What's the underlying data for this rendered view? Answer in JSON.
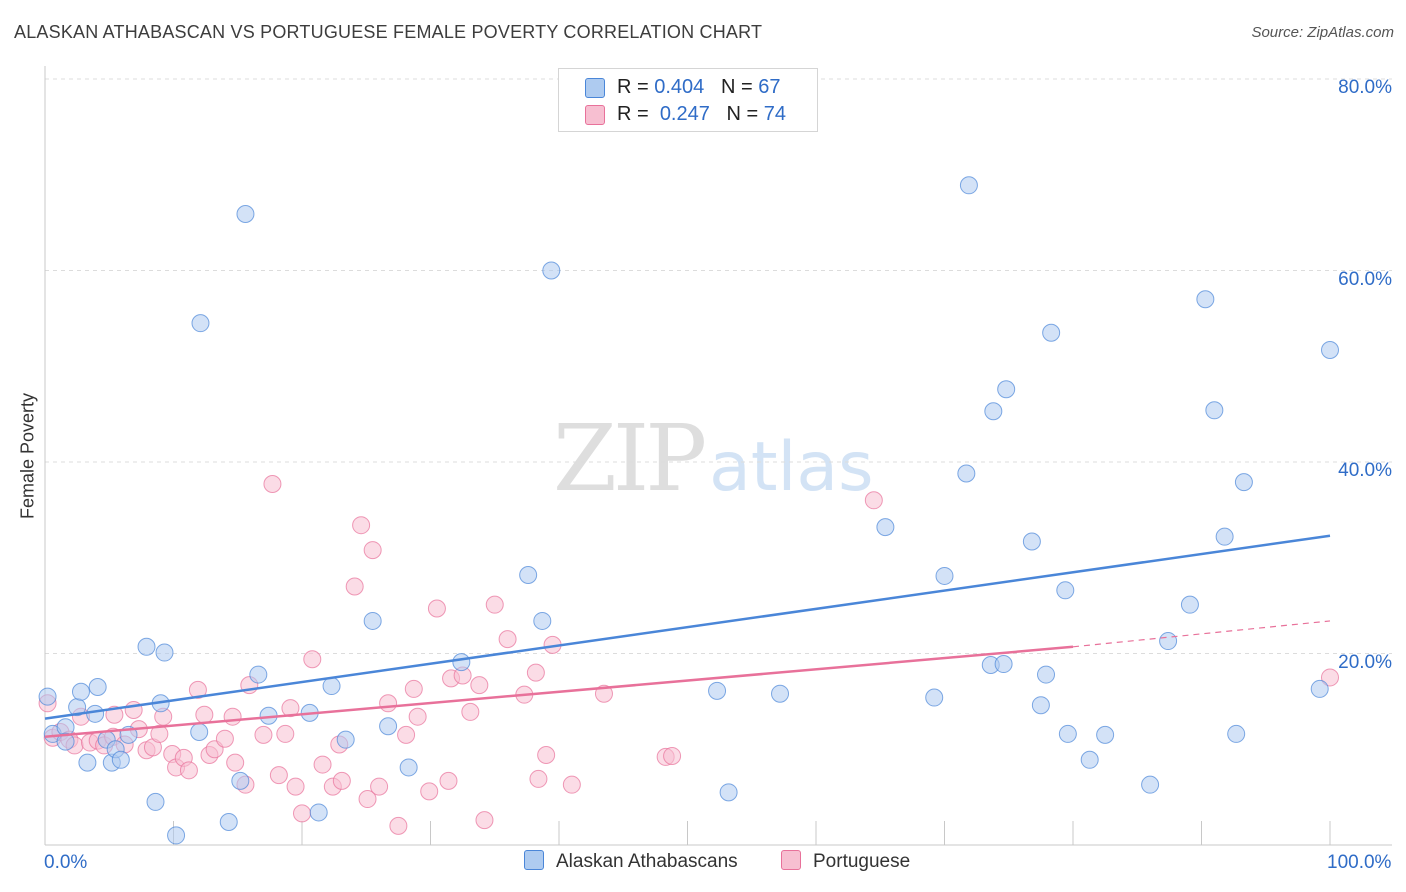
{
  "header": {
    "title": "ALASKAN ATHABASCAN VS PORTUGUESE FEMALE POVERTY CORRELATION CHART",
    "source": "Source: ZipAtlas.com"
  },
  "watermark": {
    "zip": "ZIP",
    "atlas": "atlas"
  },
  "stats_legend": {
    "rows": [
      {
        "r_label": "R = ",
        "r_value": "0.404",
        "n_label": "N = ",
        "n_value": "67",
        "color": "#aecbf0"
      },
      {
        "r_label": "R = ",
        "r_value": "0.247",
        "n_label": "N = ",
        "n_value": "74",
        "color": "#f7bfd1"
      }
    ]
  },
  "bottom_legend": {
    "items": [
      {
        "label": "Alaskan Athabascans",
        "color": "#aecbf0"
      },
      {
        "label": "Portuguese",
        "color": "#f7bfd1"
      }
    ]
  },
  "chart_data": {
    "type": "scatter",
    "title": "ALASKAN ATHABASCAN VS PORTUGUESE FEMALE POVERTY CORRELATION CHART",
    "xlabel": "",
    "ylabel": "Female Poverty",
    "xlim": [
      0,
      100
    ],
    "ylim": [
      0,
      80
    ],
    "x_tick_labels": [
      "0.0%",
      "100.0%"
    ],
    "y_ticks": [
      20,
      40,
      60,
      80
    ],
    "y_tick_labels": [
      "20.0%",
      "40.0%",
      "60.0%",
      "80.0%"
    ],
    "grid": true,
    "legend_position": "bottom",
    "colors": {
      "blue": "#4a86d8",
      "pink": "#e8719a",
      "blue_fill": "#aecbf0",
      "pink_fill": "#f7bfd1"
    },
    "series": [
      {
        "name": "Alaskan Athabascans",
        "color": "#4a86d8",
        "trend": {
          "x": [
            0,
            100
          ],
          "y": [
            13.2,
            32.3
          ]
        },
        "points": [
          [
            0.2,
            15.5
          ],
          [
            0.6,
            11.6
          ],
          [
            1.6,
            12.3
          ],
          [
            1.6,
            10.8
          ],
          [
            2.5,
            14.4
          ],
          [
            2.8,
            16.0
          ],
          [
            3.3,
            8.6
          ],
          [
            3.9,
            13.7
          ],
          [
            4.1,
            16.5
          ],
          [
            4.8,
            11.0
          ],
          [
            5.2,
            8.6
          ],
          [
            5.5,
            10.0
          ],
          [
            5.9,
            8.9
          ],
          [
            6.5,
            11.5
          ],
          [
            7.9,
            20.7
          ],
          [
            8.6,
            4.5
          ],
          [
            9.0,
            14.8
          ],
          [
            9.3,
            20.1
          ],
          [
            10.2,
            1.0
          ],
          [
            12.0,
            11.8
          ],
          [
            12.1,
            54.5
          ],
          [
            14.3,
            2.4
          ],
          [
            15.2,
            6.7
          ],
          [
            15.6,
            65.9
          ],
          [
            16.6,
            17.8
          ],
          [
            17.4,
            13.5
          ],
          [
            20.6,
            13.8
          ],
          [
            21.3,
            3.4
          ],
          [
            22.3,
            16.6
          ],
          [
            23.4,
            11.0
          ],
          [
            25.5,
            23.4
          ],
          [
            26.7,
            12.4
          ],
          [
            28.3,
            8.1
          ],
          [
            32.4,
            19.1
          ],
          [
            37.6,
            28.2
          ],
          [
            38.7,
            23.4
          ],
          [
            39.4,
            60.0
          ],
          [
            52.3,
            16.1
          ],
          [
            53.2,
            5.5
          ],
          [
            57.2,
            15.8
          ],
          [
            65.4,
            33.2
          ],
          [
            69.2,
            15.4
          ],
          [
            70.0,
            28.1
          ],
          [
            71.7,
            38.8
          ],
          [
            71.9,
            68.9
          ],
          [
            73.6,
            18.8
          ],
          [
            73.8,
            45.3
          ],
          [
            74.6,
            18.9
          ],
          [
            74.8,
            47.6
          ],
          [
            76.8,
            31.7
          ],
          [
            77.5,
            14.6
          ],
          [
            77.9,
            17.8
          ],
          [
            78.3,
            53.5
          ],
          [
            79.4,
            26.6
          ],
          [
            79.6,
            11.6
          ],
          [
            81.3,
            8.9
          ],
          [
            82.5,
            11.5
          ],
          [
            86.0,
            6.3
          ],
          [
            87.4,
            21.3
          ],
          [
            89.1,
            25.1
          ],
          [
            90.3,
            57.0
          ],
          [
            91.0,
            45.4
          ],
          [
            91.8,
            32.2
          ],
          [
            92.7,
            11.6
          ],
          [
            93.3,
            37.9
          ],
          [
            99.2,
            16.3
          ],
          [
            100.0,
            51.7
          ]
        ]
      },
      {
        "name": "Portuguese",
        "color": "#e8719a",
        "trend": {
          "x": [
            0,
            80
          ],
          "y": [
            11.3,
            20.7
          ],
          "dashed_x": [
            80,
            100
          ],
          "dashed_y": [
            20.7,
            23.4
          ]
        },
        "points": [
          [
            0.2,
            14.8
          ],
          [
            0.6,
            11.2
          ],
          [
            1.2,
            11.8
          ],
          [
            1.9,
            11.0
          ],
          [
            2.3,
            10.4
          ],
          [
            2.8,
            13.4
          ],
          [
            3.5,
            10.7
          ],
          [
            4.1,
            10.9
          ],
          [
            4.6,
            10.4
          ],
          [
            5.3,
            11.3
          ],
          [
            5.4,
            13.6
          ],
          [
            6.2,
            10.5
          ],
          [
            6.9,
            14.1
          ],
          [
            7.3,
            12.1
          ],
          [
            7.9,
            9.9
          ],
          [
            8.4,
            10.2
          ],
          [
            8.9,
            11.6
          ],
          [
            9.2,
            13.4
          ],
          [
            9.9,
            9.5
          ],
          [
            10.2,
            8.1
          ],
          [
            10.8,
            9.1
          ],
          [
            11.2,
            7.8
          ],
          [
            11.9,
            16.2
          ],
          [
            12.4,
            13.6
          ],
          [
            12.8,
            9.4
          ],
          [
            13.2,
            10.0
          ],
          [
            14.0,
            11.1
          ],
          [
            14.6,
            13.4
          ],
          [
            14.8,
            8.6
          ],
          [
            15.6,
            6.3
          ],
          [
            15.9,
            16.7
          ],
          [
            17.0,
            11.5
          ],
          [
            17.7,
            37.7
          ],
          [
            18.2,
            7.3
          ],
          [
            18.7,
            11.6
          ],
          [
            19.1,
            14.3
          ],
          [
            19.5,
            6.1
          ],
          [
            20.0,
            3.3
          ],
          [
            20.8,
            19.4
          ],
          [
            21.6,
            8.4
          ],
          [
            22.4,
            6.1
          ],
          [
            22.9,
            10.5
          ],
          [
            23.1,
            6.7
          ],
          [
            24.1,
            27.0
          ],
          [
            24.6,
            33.4
          ],
          [
            25.1,
            4.8
          ],
          [
            25.5,
            30.8
          ],
          [
            26.0,
            6.1
          ],
          [
            26.7,
            14.8
          ],
          [
            27.5,
            2.0
          ],
          [
            28.1,
            11.5
          ],
          [
            28.7,
            16.3
          ],
          [
            29.0,
            13.4
          ],
          [
            29.9,
            5.6
          ],
          [
            30.5,
            24.7
          ],
          [
            31.4,
            6.7
          ],
          [
            31.6,
            17.4
          ],
          [
            32.5,
            17.7
          ],
          [
            33.1,
            13.9
          ],
          [
            33.8,
            16.7
          ],
          [
            34.2,
            2.6
          ],
          [
            35.0,
            25.1
          ],
          [
            36.0,
            21.5
          ],
          [
            37.3,
            15.7
          ],
          [
            38.2,
            18.0
          ],
          [
            38.4,
            6.9
          ],
          [
            39.0,
            9.4
          ],
          [
            39.5,
            20.9
          ],
          [
            41.0,
            6.3
          ],
          [
            43.5,
            15.8
          ],
          [
            48.3,
            9.2
          ],
          [
            48.8,
            9.3
          ],
          [
            64.5,
            36.0
          ],
          [
            100.0,
            17.5
          ]
        ]
      }
    ]
  }
}
